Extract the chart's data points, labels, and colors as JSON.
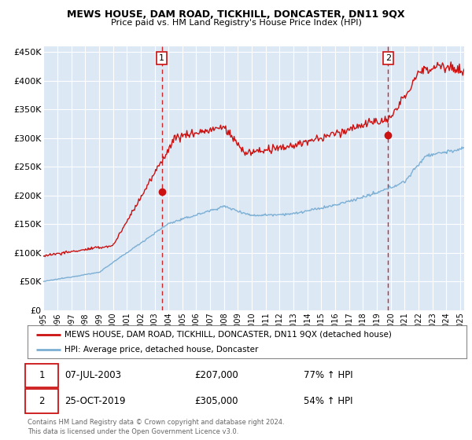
{
  "title": "MEWS HOUSE, DAM ROAD, TICKHILL, DONCASTER, DN11 9QX",
  "subtitle": "Price paid vs. HM Land Registry's House Price Index (HPI)",
  "ylabel_ticks": [
    "£0",
    "£50K",
    "£100K",
    "£150K",
    "£200K",
    "£250K",
    "£300K",
    "£350K",
    "£400K",
    "£450K"
  ],
  "ytick_values": [
    0,
    50000,
    100000,
    150000,
    200000,
    250000,
    300000,
    350000,
    400000,
    450000
  ],
  "ylim": [
    0,
    460000
  ],
  "xlim_start": 1995.0,
  "xlim_end": 2025.3,
  "background_color": "#dde8f5",
  "plot_bg_color": "#dde8f5",
  "grid_color": "#ffffff",
  "hpi_line_color": "#7bafd4",
  "price_line_color": "#cc1111",
  "sale1_x": 2003.52,
  "sale1_y": 207000,
  "sale2_x": 2019.81,
  "sale2_y": 305000,
  "sale1_label": "07-JUL-2003",
  "sale1_price": "£207,000",
  "sale1_hpi": "77% ↑ HPI",
  "sale2_label": "25-OCT-2019",
  "sale2_price": "£305,000",
  "sale2_hpi": "54% ↑ HPI",
  "legend_line1": "MEWS HOUSE, DAM ROAD, TICKHILL, DONCASTER, DN11 9QX (detached house)",
  "legend_line2": "HPI: Average price, detached house, Doncaster",
  "footnote": "Contains HM Land Registry data © Crown copyright and database right 2024.\nThis data is licensed under the Open Government Licence v3.0.",
  "xtick_years": [
    1995,
    1996,
    1997,
    1998,
    1999,
    2000,
    2001,
    2002,
    2003,
    2004,
    2005,
    2006,
    2007,
    2008,
    2009,
    2010,
    2011,
    2012,
    2013,
    2014,
    2015,
    2016,
    2017,
    2018,
    2019,
    2020,
    2021,
    2022,
    2023,
    2024,
    2025
  ]
}
